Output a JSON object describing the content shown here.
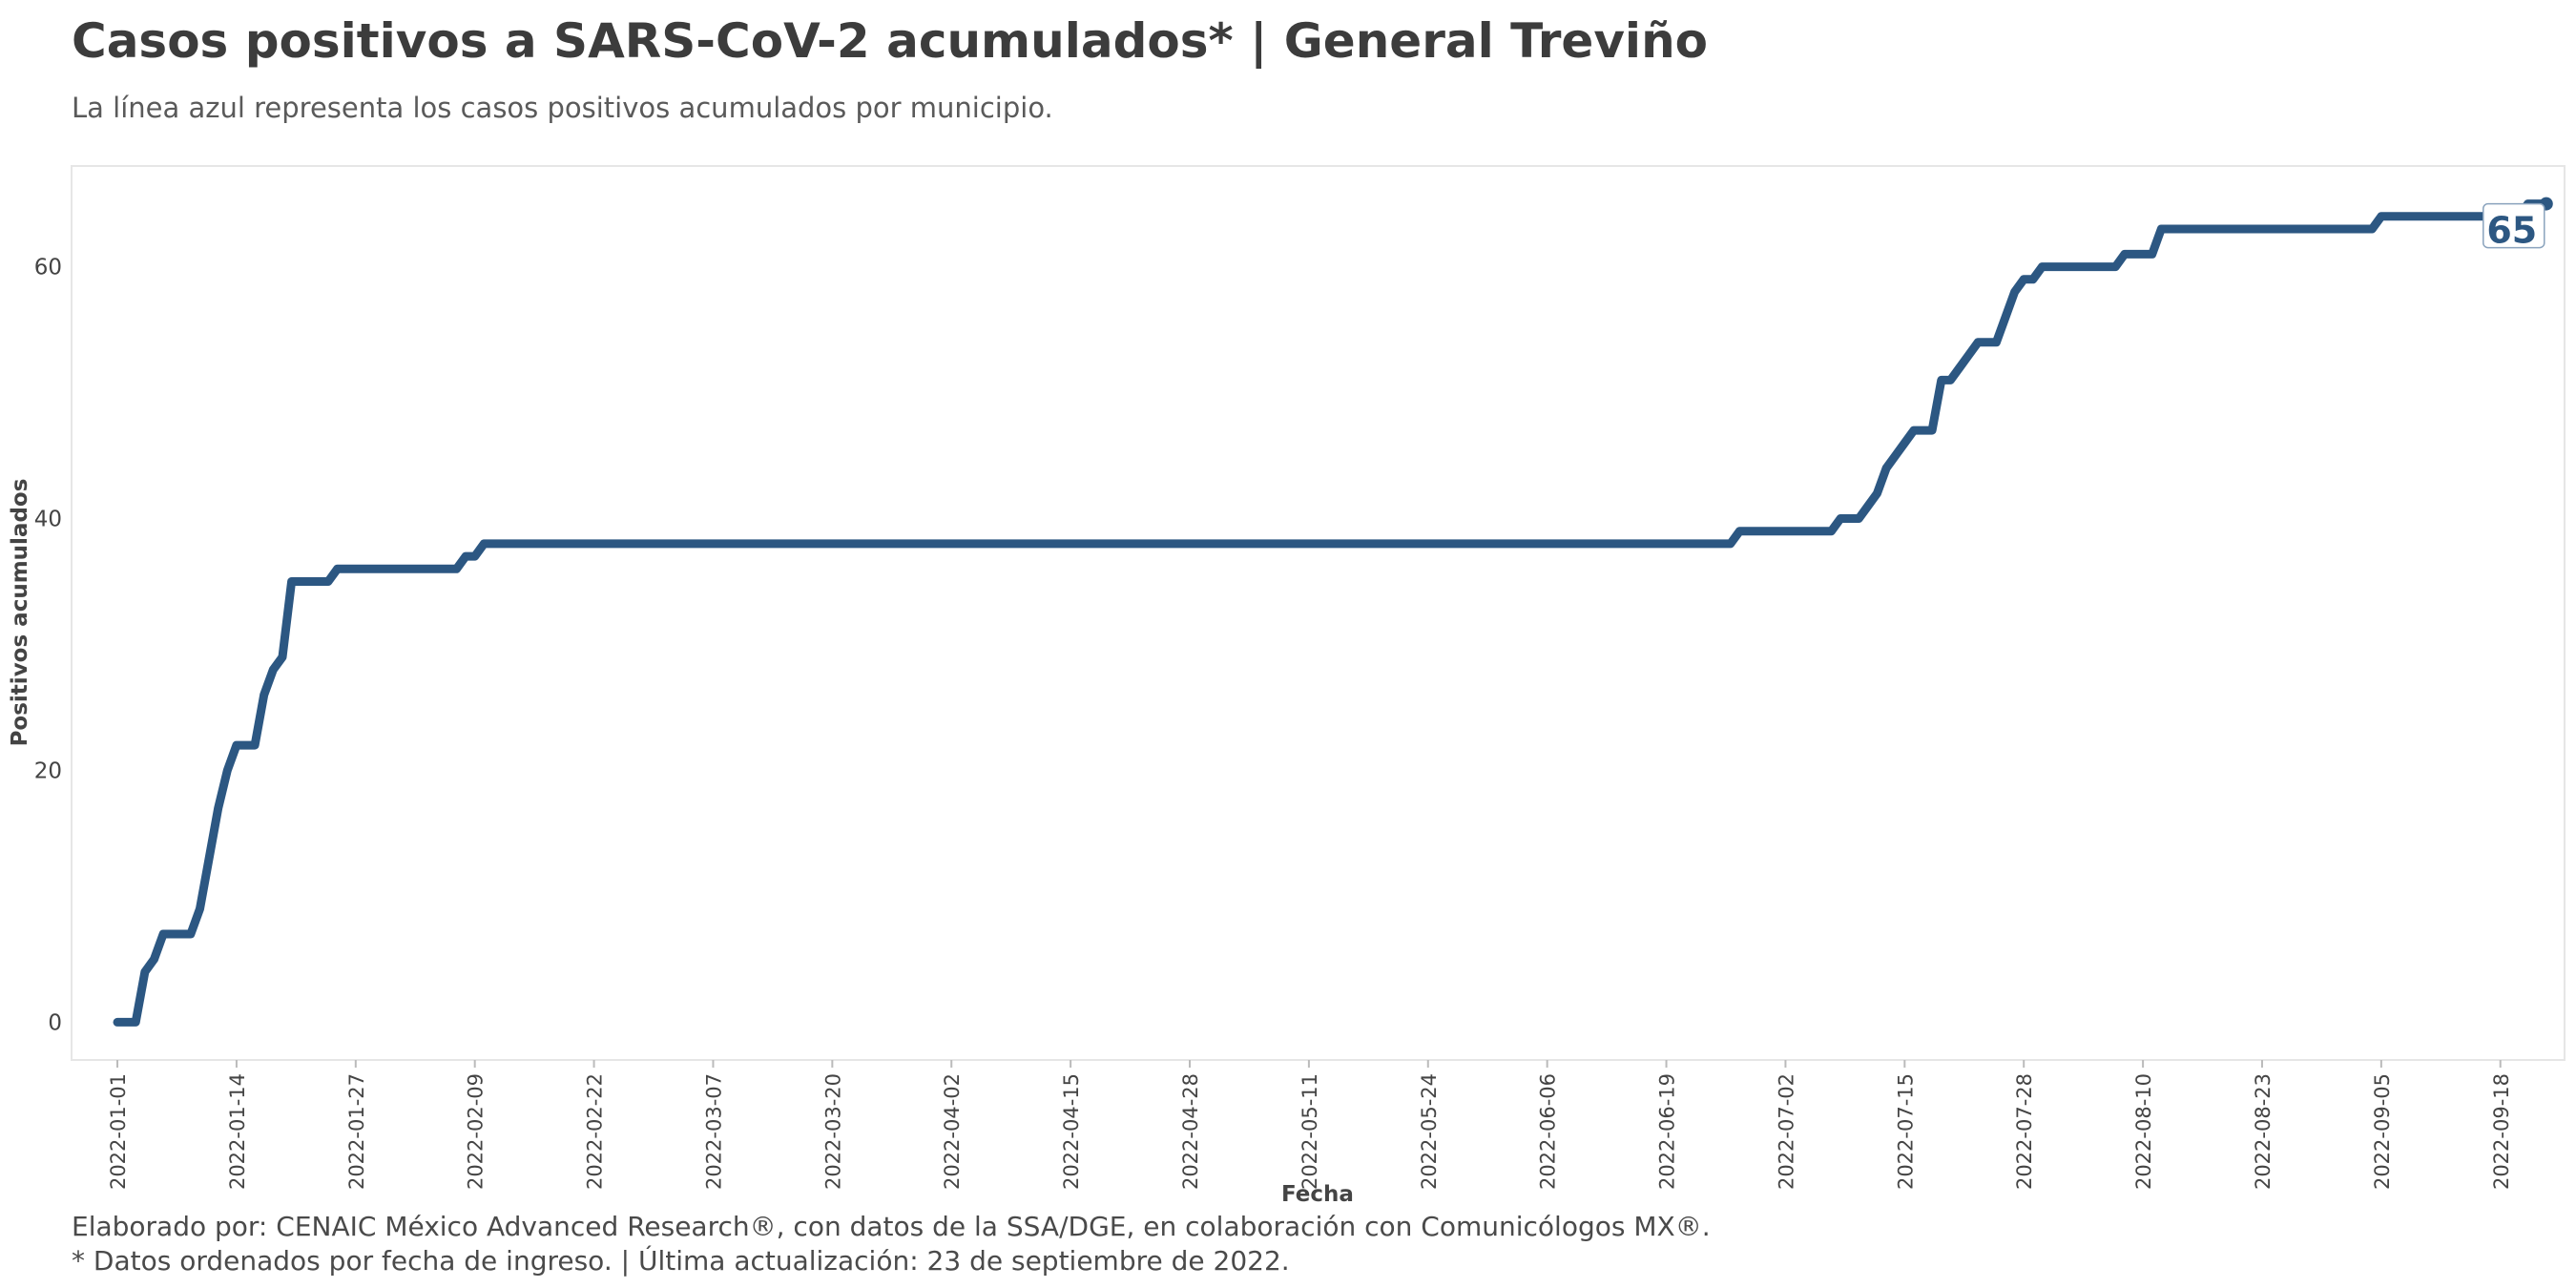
{
  "chart_data": {
    "type": "line",
    "title": "Casos positivos a SARS-CoV-2 acumulados* | General Treviño",
    "subtitle": "La línea azul representa los casos positivos acumulados por municipio.",
    "xlabel": "Fecha",
    "ylabel": "Positivos acumulados",
    "x_tick_labels": [
      "2022-01-01",
      "2022-01-14",
      "2022-01-27",
      "2022-02-09",
      "2022-02-22",
      "2022-03-07",
      "2022-03-20",
      "2022-04-02",
      "2022-04-15",
      "2022-04-28",
      "2022-05-11",
      "2022-05-24",
      "2022-06-06",
      "2022-06-19",
      "2022-07-02",
      "2022-07-15",
      "2022-07-28",
      "2022-08-10",
      "2022-08-23",
      "2022-09-05",
      "2022-09-18"
    ],
    "y_ticks": [
      0,
      20,
      40,
      60
    ],
    "ylim": [
      -3,
      68
    ],
    "xlim": [
      "2021-12-27",
      "2022-09-25"
    ],
    "grid": false,
    "line_color": "#2c5782",
    "series": [
      {
        "points": [
          [
            "2022-01-01",
            0
          ],
          [
            "2022-01-03",
            0
          ],
          [
            "2022-01-04",
            4
          ],
          [
            "2022-01-05",
            5
          ],
          [
            "2022-01-06",
            7
          ],
          [
            "2022-01-09",
            7
          ],
          [
            "2022-01-10",
            9
          ],
          [
            "2022-01-11",
            13
          ],
          [
            "2022-01-12",
            17
          ],
          [
            "2022-01-13",
            20
          ],
          [
            "2022-01-14",
            22
          ],
          [
            "2022-01-16",
            22
          ],
          [
            "2022-01-17",
            26
          ],
          [
            "2022-01-18",
            28
          ],
          [
            "2022-01-19",
            29
          ],
          [
            "2022-01-20",
            35
          ],
          [
            "2022-01-24",
            35
          ],
          [
            "2022-01-25",
            36
          ],
          [
            "2022-02-07",
            36
          ],
          [
            "2022-02-08",
            37
          ],
          [
            "2022-02-09",
            37
          ],
          [
            "2022-02-10",
            38
          ],
          [
            "2022-06-26",
            38
          ],
          [
            "2022-06-27",
            39
          ],
          [
            "2022-07-07",
            39
          ],
          [
            "2022-07-08",
            40
          ],
          [
            "2022-07-10",
            40
          ],
          [
            "2022-07-11",
            41
          ],
          [
            "2022-07-12",
            42
          ],
          [
            "2022-07-13",
            44
          ],
          [
            "2022-07-14",
            45
          ],
          [
            "2022-07-15",
            46
          ],
          [
            "2022-07-16",
            47
          ],
          [
            "2022-07-18",
            47
          ],
          [
            "2022-07-19",
            51
          ],
          [
            "2022-07-20",
            51
          ],
          [
            "2022-07-21",
            52
          ],
          [
            "2022-07-22",
            53
          ],
          [
            "2022-07-23",
            54
          ],
          [
            "2022-07-25",
            54
          ],
          [
            "2022-07-26",
            56
          ],
          [
            "2022-07-27",
            58
          ],
          [
            "2022-07-28",
            59
          ],
          [
            "2022-07-29",
            59
          ],
          [
            "2022-07-30",
            60
          ],
          [
            "2022-08-07",
            60
          ],
          [
            "2022-08-08",
            61
          ],
          [
            "2022-08-11",
            61
          ],
          [
            "2022-08-12",
            63
          ],
          [
            "2022-09-04",
            63
          ],
          [
            "2022-09-05",
            64
          ],
          [
            "2022-09-20",
            64
          ],
          [
            "2022-09-21",
            65
          ],
          [
            "2022-09-23",
            65
          ]
        ]
      }
    ],
    "end_label": "65"
  },
  "caption": {
    "line1": "Elaborado por: CENAIC México Advanced Research®, con datos de la SSA/DGE, en colaboración con Comunicólogos MX®.",
    "line2": "* Datos ordenados por fecha de ingreso. | Última actualización: 23 de septiembre de 2022."
  }
}
